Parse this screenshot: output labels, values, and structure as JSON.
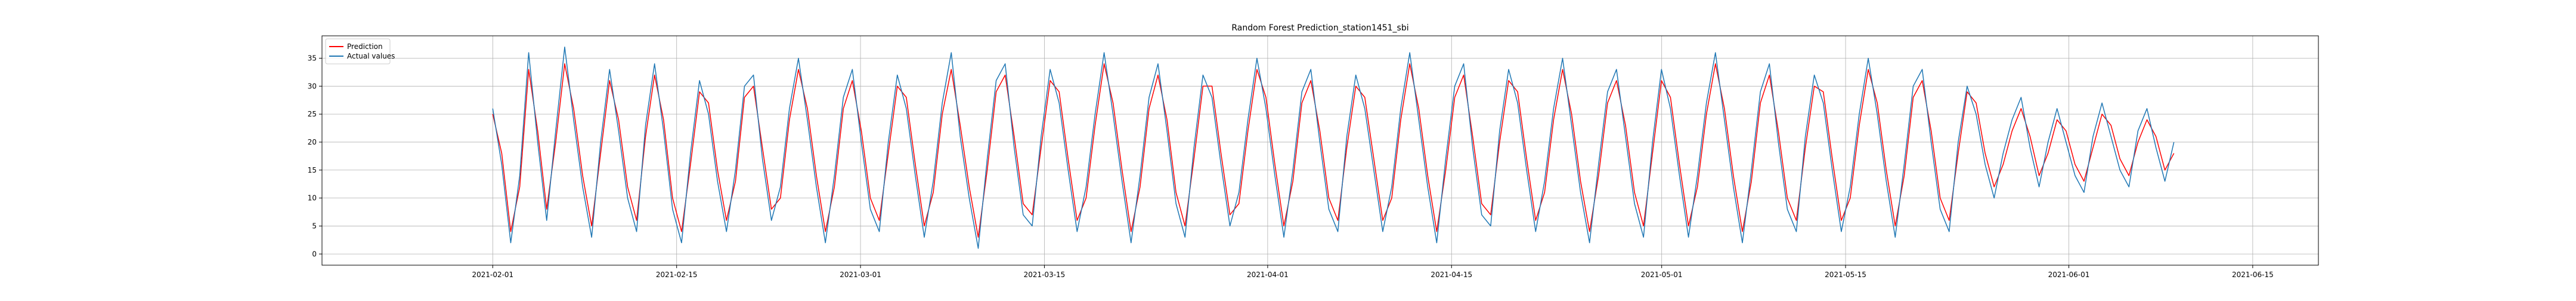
{
  "chart_data": {
    "type": "line",
    "title": "Random Forest Prediction_station1451_sbi",
    "xlabel": "",
    "ylabel": "",
    "xlim": [
      "2021-01-19",
      "2021-06-20"
    ],
    "ylim": [
      -2,
      39
    ],
    "x_start": "2021-02-01",
    "x_end": "2021-06-09",
    "x_ticks": [
      "2021-02-01",
      "2021-02-15",
      "2021-03-01",
      "2021-03-15",
      "2021-04-01",
      "2021-04-15",
      "2021-05-01",
      "2021-05-15",
      "2021-06-01",
      "2021-06-15"
    ],
    "y_ticks": [
      0,
      5,
      10,
      15,
      20,
      25,
      30,
      35
    ],
    "grid": true,
    "legend_position": "top-left",
    "series": [
      {
        "name": "Prediction",
        "color": "#ff0000",
        "values": [
          25,
          18,
          4,
          12,
          33,
          22,
          8,
          20,
          34,
          26,
          14,
          5,
          18,
          31,
          24,
          12,
          6,
          21,
          32,
          24,
          10,
          4,
          16,
          29,
          27,
          15,
          6,
          13,
          28,
          30,
          19,
          8,
          10,
          24,
          33,
          26,
          14,
          4,
          12,
          26,
          31,
          22,
          10,
          6,
          18,
          30,
          28,
          16,
          5,
          11,
          25,
          33,
          23,
          12,
          3,
          15,
          29,
          32,
          21,
          9,
          7,
          19,
          31,
          29,
          17,
          6,
          10,
          23,
          34,
          27,
          15,
          4,
          12,
          26,
          32,
          24,
          11,
          5,
          17,
          30,
          30,
          18,
          7,
          9,
          22,
          33,
          28,
          16,
          5,
          13,
          27,
          31,
          22,
          10,
          6,
          19,
          30,
          28,
          17,
          6,
          10,
          24,
          34,
          26,
          14,
          4,
          15,
          28,
          32,
          21,
          9,
          7,
          20,
          31,
          29,
          17,
          6,
          11,
          24,
          33,
          25,
          13,
          4,
          14,
          27,
          31,
          23,
          11,
          5,
          18,
          31,
          28,
          16,
          5,
          12,
          25,
          34,
          26,
          14,
          4,
          13,
          27,
          32,
          22,
          10,
          6,
          19,
          30,
          29,
          17,
          6,
          10,
          23,
          33,
          27,
          15,
          5,
          14,
          28,
          31,
          22,
          10,
          6,
          18,
          29,
          27,
          18,
          12,
          16,
          22,
          26,
          21,
          14,
          18,
          24,
          22,
          16,
          13,
          19,
          25,
          23,
          17,
          14,
          20,
          24,
          21,
          15,
          18
        ]
      },
      {
        "name": "Actual values",
        "color": "#1f77b4",
        "values": [
          26,
          16,
          2,
          14,
          36,
          20,
          6,
          22,
          37,
          24,
          12,
          3,
          20,
          33,
          22,
          10,
          4,
          23,
          34,
          22,
          8,
          2,
          18,
          31,
          25,
          13,
          4,
          15,
          30,
          32,
          17,
          6,
          12,
          26,
          35,
          24,
          12,
          2,
          14,
          28,
          33,
          20,
          8,
          4,
          20,
          32,
          26,
          14,
          3,
          13,
          27,
          36,
          21,
          10,
          1,
          17,
          31,
          34,
          19,
          7,
          5,
          21,
          33,
          27,
          15,
          4,
          12,
          25,
          36,
          25,
          13,
          2,
          14,
          28,
          34,
          22,
          9,
          3,
          19,
          32,
          28,
          16,
          5,
          11,
          24,
          35,
          26,
          14,
          3,
          15,
          29,
          33,
          20,
          8,
          4,
          21,
          32,
          26,
          15,
          4,
          12,
          26,
          36,
          24,
          12,
          2,
          17,
          30,
          34,
          19,
          7,
          5,
          22,
          33,
          27,
          15,
          4,
          13,
          26,
          35,
          23,
          11,
          2,
          16,
          29,
          33,
          21,
          9,
          3,
          20,
          33,
          26,
          14,
          3,
          14,
          27,
          36,
          24,
          12,
          2,
          15,
          29,
          34,
          20,
          8,
          4,
          21,
          32,
          27,
          15,
          4,
          12,
          25,
          35,
          25,
          13,
          3,
          16,
          30,
          33,
          20,
          8,
          4,
          20,
          30,
          25,
          16,
          10,
          18,
          24,
          28,
          19,
          12,
          20,
          26,
          20,
          14,
          11,
          21,
          27,
          21,
          15,
          12,
          22,
          26,
          19,
          13,
          20
        ]
      }
    ]
  }
}
